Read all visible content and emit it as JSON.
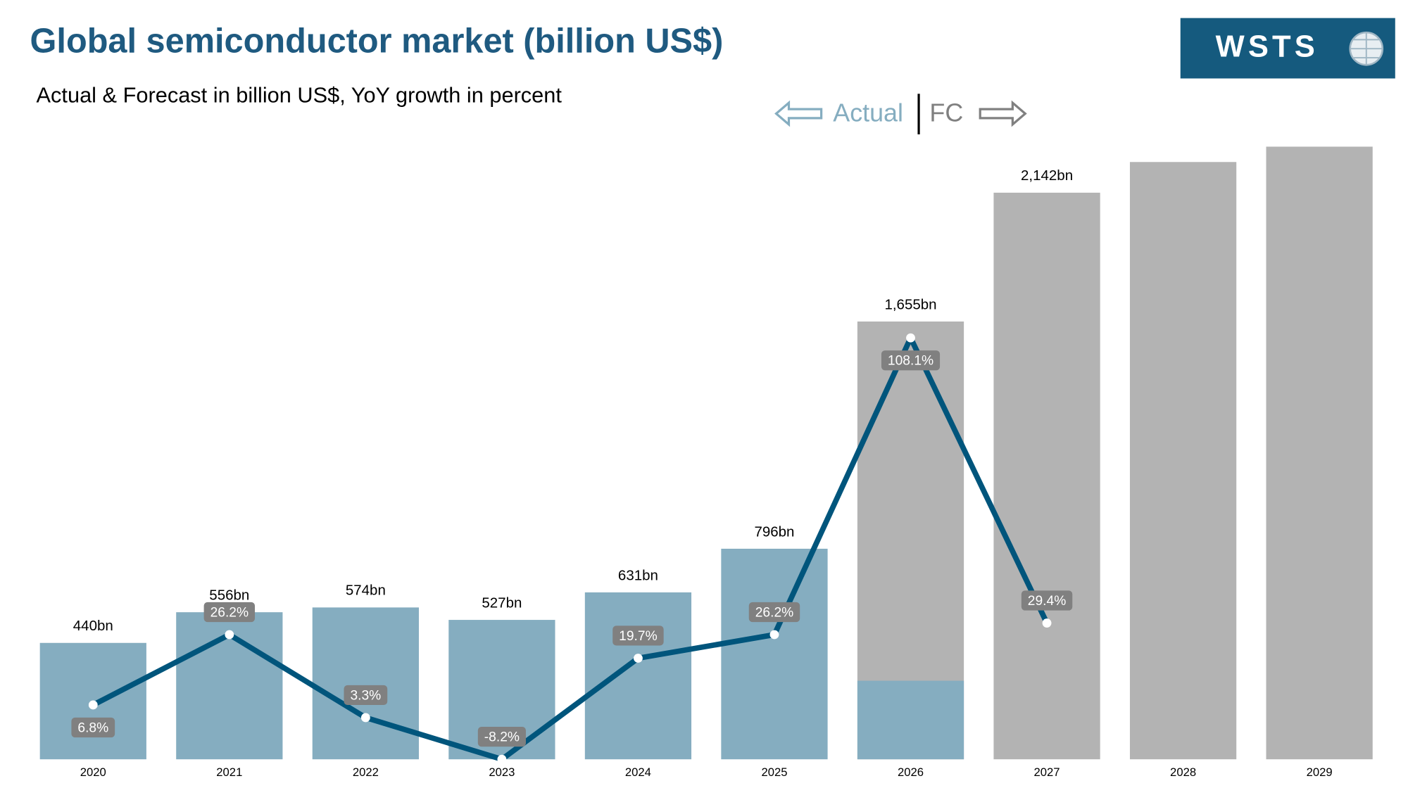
{
  "header": {
    "title": "Global semiconductor market (billion US$)",
    "subtitle": "Actual & Forecast in billion US$, YoY growth in percent",
    "logo": "WSTS",
    "actual_label": "Actual",
    "forecast_label": "FC"
  },
  "chart_data": {
    "type": "bar",
    "categories": [
      "2020",
      "2021",
      "2022",
      "2023",
      "2024",
      "2025",
      "2026",
      "2027",
      "2028",
      "2029"
    ],
    "series": [
      {
        "color": "#85adc0",
        "values": [
          440,
          556,
          574,
          527,
          631,
          796,
          297,
          null,
          null,
          null
        ],
        "value_labels": [
          "440bn",
          "556bn",
          "574bn",
          "527bn",
          "631bn",
          "796bn",
          null,
          null,
          null,
          null
        ]
      },
      {
        "color": "#b3b3b3",
        "values": [
          null,
          null,
          null,
          null,
          null,
          null,
          1655,
          2142,
          2258,
          2316
        ],
        "value_labels": [
          null,
          null,
          null,
          null,
          null,
          null,
          "1,655bn",
          "2,142bn",
          null,
          null
        ]
      },
      {
        "type": "line",
        "axis": "y2",
        "color": "#00557c",
        "values": [
          6.8,
          26.2,
          3.3,
          -8.2,
          19.7,
          26.2,
          108.1,
          29.4,
          null,
          null
        ],
        "value_labels": [
          "6.8%",
          "26.2%",
          "3.3%",
          "-8.2%",
          "19.7%",
          "26.2%",
          "108.1%",
          "29.4%",
          null,
          null
        ]
      }
    ],
    "ylim": [
      0,
      2400
    ],
    "y2lim": [
      -8.2,
      167
    ],
    "grid": false
  }
}
